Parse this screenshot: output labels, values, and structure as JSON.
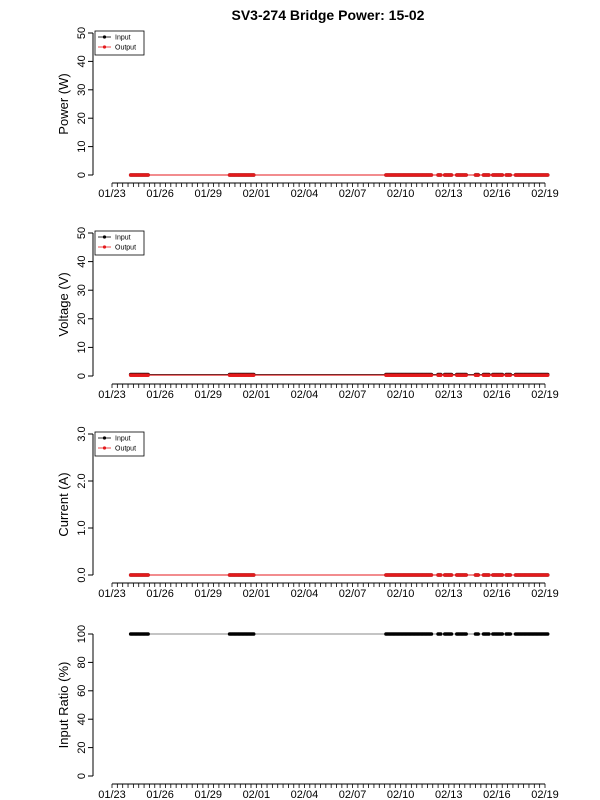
{
  "title": "SV3-274 Bridge Power: 15-02",
  "colors": {
    "input": "#000000",
    "output": "#e41a1c",
    "ratio": "#000000"
  },
  "date_axis": {
    "start": "2024-01-23",
    "end": "2024-02-19",
    "tick_labels": [
      {
        "date": "2024-01-23",
        "label": "01/23"
      },
      {
        "date": "2024-01-26",
        "label": "01/26"
      },
      {
        "date": "2024-01-29",
        "label": "01/29"
      },
      {
        "date": "2024-02-01",
        "label": "02/01"
      },
      {
        "date": "2024-02-04",
        "label": "02/04"
      },
      {
        "date": "2024-02-07",
        "label": "02/07"
      },
      {
        "date": "2024-02-10",
        "label": "02/10"
      },
      {
        "date": "2024-02-13",
        "label": "02/13"
      },
      {
        "date": "2024-02-16",
        "label": "02/16"
      },
      {
        "date": "2024-02-19",
        "label": "02/19"
      }
    ]
  },
  "chart_data": [
    {
      "type": "line",
      "ylabel": "Power (W)",
      "ylim": [
        0,
        50
      ],
      "yticks": [
        "0",
        "10",
        "20",
        "30",
        "40",
        "50"
      ],
      "legend": {
        "position": "top-left",
        "entries": [
          "Input",
          "Output"
        ]
      },
      "series": [
        {
          "name": "Input",
          "color": "#000000",
          "y": 0
        },
        {
          "name": "Output",
          "color": "#e41a1c",
          "y": 0
        }
      ]
    },
    {
      "type": "line",
      "ylabel": "Voltage (V)",
      "ylim": [
        0,
        50
      ],
      "yticks": [
        "0",
        "10",
        "20",
        "30",
        "40",
        "50"
      ],
      "legend": {
        "position": "top-left",
        "entries": [
          "Input",
          "Output"
        ]
      },
      "series": [
        {
          "name": "Input",
          "color": "#000000",
          "y": 0.5
        },
        {
          "name": "Output",
          "color": "#e41a1c",
          "y": 0.3
        }
      ]
    },
    {
      "type": "line",
      "ylabel": "Current (A)",
      "ylim": [
        0,
        3
      ],
      "yticks": [
        "0.0",
        "1.0",
        "2.0",
        "3.0"
      ],
      "legend": {
        "position": "top-left",
        "entries": [
          "Input",
          "Output"
        ]
      },
      "series": [
        {
          "name": "Input",
          "color": "#000000",
          "y": 0
        },
        {
          "name": "Output",
          "color": "#e41a1c",
          "y": 0
        }
      ]
    },
    {
      "type": "line",
      "ylabel": "Input Ratio (%)",
      "ylim": [
        0,
        100
      ],
      "yticks": [
        "0",
        "20",
        "40",
        "60",
        "80",
        "100"
      ],
      "series": [
        {
          "name": "Input Ratio",
          "color": "#000000",
          "y": 100
        }
      ]
    }
  ],
  "observation_segments": [
    {
      "start": "2024-01-24T04:00",
      "end": "2024-01-25T06:00"
    },
    {
      "start": "2024-01-30T08:00",
      "end": "2024-01-31T20:00"
    },
    {
      "start": "2024-02-09T02:00",
      "end": "2024-02-11T23:00"
    },
    {
      "start": "2024-02-12T08:00",
      "end": "2024-02-12T12:00"
    },
    {
      "start": "2024-02-12T18:00",
      "end": "2024-02-13T04:00"
    },
    {
      "start": "2024-02-13T12:00",
      "end": "2024-02-14T02:00"
    },
    {
      "start": "2024-02-14T16:00",
      "end": "2024-02-14T20:00"
    },
    {
      "start": "2024-02-15T04:00",
      "end": "2024-02-15T12:00"
    },
    {
      "start": "2024-02-15T18:00",
      "end": "2024-02-16T08:00"
    },
    {
      "start": "2024-02-16T14:00",
      "end": "2024-02-16T20:00"
    },
    {
      "start": "2024-02-17T04:00",
      "end": "2024-02-19T05:00"
    }
  ]
}
